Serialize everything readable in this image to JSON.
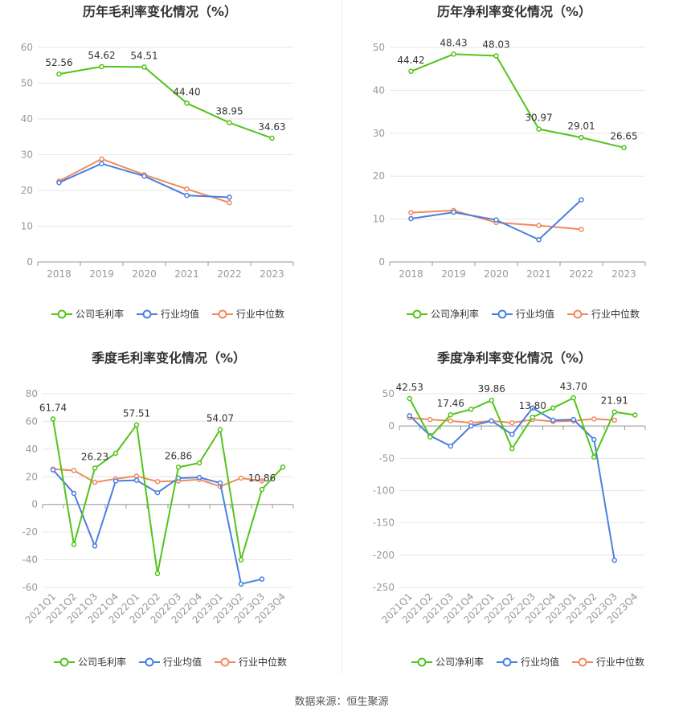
{
  "source": "数据来源：恒生聚源",
  "chart_data": [
    {
      "type": "line",
      "title": "历年毛利率变化情况（%）",
      "categories": [
        "2018",
        "2019",
        "2020",
        "2021",
        "2022",
        "2023"
      ],
      "ylim": [
        0,
        60
      ],
      "yticks": [
        0,
        10,
        20,
        30,
        40,
        50,
        60
      ],
      "grid": true,
      "legend_position": "bottom",
      "series": [
        {
          "name": "公司毛利率",
          "color": "#52c41a",
          "values": [
            52.56,
            54.62,
            54.51,
            44.4,
            38.95,
            34.63
          ],
          "labels": [
            "52.56",
            "54.62",
            "54.51",
            "44.40",
            "38.95",
            "34.63"
          ]
        },
        {
          "name": "行业均值",
          "color": "#4a7fe0",
          "values": [
            22.2,
            27.5,
            24.0,
            18.6,
            18.1,
            null
          ],
          "labels": []
        },
        {
          "name": "行业中位数",
          "color": "#f08a5d",
          "values": [
            22.6,
            28.8,
            24.4,
            20.4,
            16.6,
            null
          ],
          "labels": []
        }
      ]
    },
    {
      "type": "line",
      "title": "历年净利率变化情况（%）",
      "categories": [
        "2018",
        "2019",
        "2020",
        "2021",
        "2022",
        "2023"
      ],
      "ylim": [
        0,
        50
      ],
      "yticks": [
        0,
        10,
        20,
        30,
        40,
        50
      ],
      "grid": true,
      "legend_position": "bottom",
      "series": [
        {
          "name": "公司净利率",
          "color": "#52c41a",
          "values": [
            44.42,
            48.43,
            48.03,
            30.97,
            29.01,
            26.65
          ],
          "labels": [
            "44.42",
            "48.43",
            "48.03",
            "30.97",
            "29.01",
            "26.65"
          ]
        },
        {
          "name": "行业均值",
          "color": "#4a7fe0",
          "values": [
            10.1,
            11.6,
            9.8,
            5.2,
            14.5,
            null
          ],
          "labels": []
        },
        {
          "name": "行业中位数",
          "color": "#f08a5d",
          "values": [
            11.5,
            12.0,
            9.2,
            8.5,
            7.6,
            null
          ],
          "labels": []
        }
      ]
    },
    {
      "type": "line",
      "title": "季度毛利率变化情况（%）",
      "categories": [
        "2021Q1",
        "2021Q2",
        "2021Q3",
        "2021Q4",
        "2022Q1",
        "2022Q2",
        "2022Q3",
        "2022Q4",
        "2023Q1",
        "2023Q2",
        "2023Q3",
        "2023Q4"
      ],
      "ylim": [
        -60,
        80
      ],
      "yticks": [
        -60,
        -40,
        -20,
        0,
        20,
        40,
        60,
        80
      ],
      "grid": true,
      "legend_position": "bottom",
      "series": [
        {
          "name": "公司毛利率",
          "color": "#52c41a",
          "values": [
            61.74,
            -29,
            26.23,
            37,
            57.51,
            -50,
            26.86,
            30,
            54.07,
            -40,
            10.86,
            27
          ],
          "labels": [
            "61.74",
            "",
            "26.23",
            "",
            "57.51",
            "",
            "26.86",
            "",
            "54.07",
            "",
            "10.86",
            ""
          ]
        },
        {
          "name": "行业均值",
          "color": "#4a7fe0",
          "values": [
            25,
            8,
            -30,
            17,
            17.5,
            8.5,
            19,
            19.5,
            15.5,
            -57.5,
            -54,
            null
          ],
          "labels": []
        },
        {
          "name": "行业中位数",
          "color": "#f08a5d",
          "values": [
            25.5,
            24.5,
            16,
            18.5,
            20.5,
            16.5,
            17,
            18,
            13,
            19,
            17,
            null
          ],
          "labels": []
        }
      ]
    },
    {
      "type": "line",
      "title": "季度净利率变化情况（%）",
      "categories": [
        "2021Q1",
        "2021Q2",
        "2021Q3",
        "2021Q4",
        "2022Q1",
        "2022Q2",
        "2022Q3",
        "2022Q4",
        "2023Q1",
        "2023Q2",
        "2023Q3",
        "2023Q4"
      ],
      "ylim": [
        -250,
        50
      ],
      "yticks": [
        -250,
        -200,
        -150,
        -100,
        -50,
        0,
        50
      ],
      "grid": true,
      "legend_position": "bottom",
      "series": [
        {
          "name": "公司净利率",
          "color": "#52c41a",
          "values": [
            42.53,
            -17,
            17.46,
            26,
            39.86,
            -35,
            13.8,
            28,
            43.7,
            -48,
            21.91,
            17
          ],
          "labels": [
            "42.53",
            "",
            "17.46",
            "",
            "39.86",
            "",
            "13.80",
            "",
            "43.70",
            "",
            "21.91",
            ""
          ]
        },
        {
          "name": "行业均值",
          "color": "#4a7fe0",
          "values": [
            16,
            -15,
            -31,
            0,
            8,
            -13,
            28,
            9,
            10,
            -21,
            -208,
            null
          ],
          "labels": []
        },
        {
          "name": "行业中位数",
          "color": "#f08a5d",
          "values": [
            13,
            10,
            8,
            5,
            8,
            5,
            10,
            7,
            8,
            11,
            9,
            null
          ],
          "labels": []
        }
      ]
    }
  ]
}
